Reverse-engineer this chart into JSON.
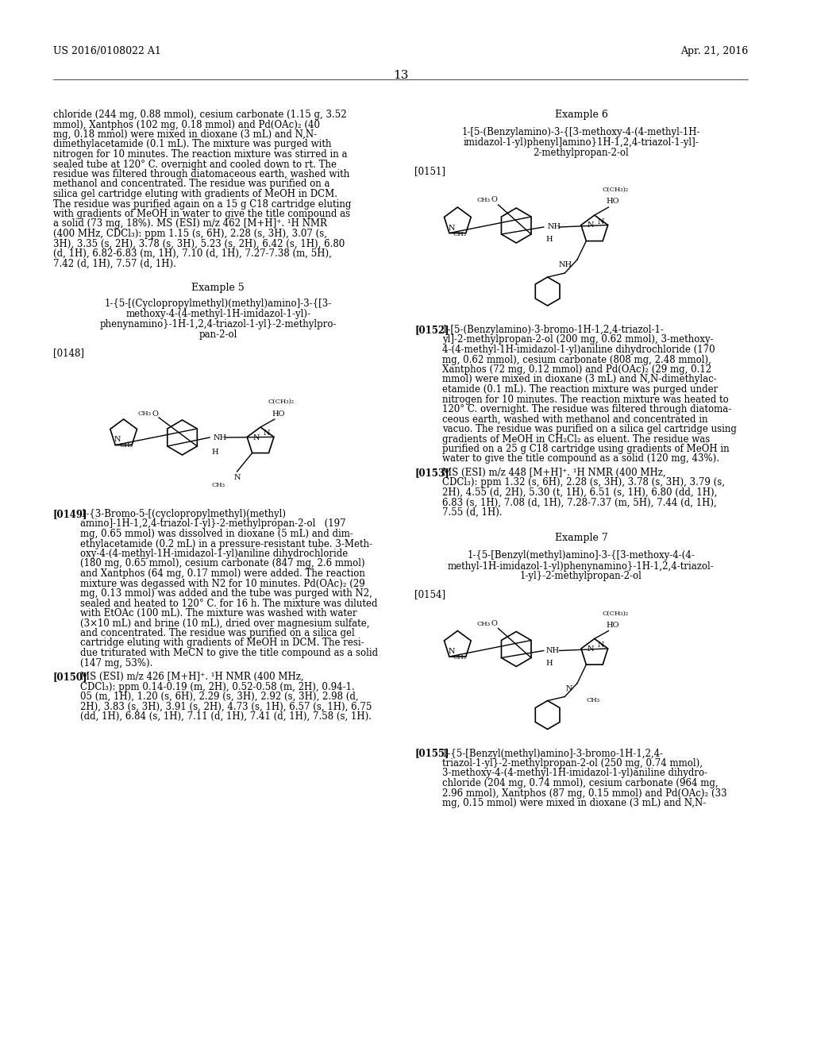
{
  "header_left": "US 2016/0108022 A1",
  "header_right": "Apr. 21, 2016",
  "page_number": "13",
  "background_color": "#ffffff",
  "text_color": "#000000",
  "font_size_body": 8.5,
  "font_size_header": 9,
  "font_size_page": 11,
  "left_column_text": [
    "chloride (244 mg, 0.88 mmol), cesium carbonate (1.15 g, 3.52",
    "mmol), Xantphos (102 mg, 0.18 mmol) and Pd(OAc)₂ (40",
    "mg, 0.18 mmol) were mixed in dioxane (3 mL) and N,N-",
    "dimethylacetamide (0.1 mL). The mixture was purged with",
    "nitrogen for 10 minutes. The reaction mixture was stirred in a",
    "sealed tube at 120° C. overnight and cooled down to rt. The",
    "residue was filtered through diatomaceous earth, washed with",
    "methanol and concentrated. The residue was purified on a",
    "silica gel cartridge eluting with gradients of MeOH in DCM.",
    "The residue was purified again on a 15 g C18 cartridge eluting",
    "with gradients of MeOH in water to give the title compound as",
    "a solid (73 mg, 18%). MS (ESI) m/z 462 [M+H]⁺. ¹H NMR",
    "(400 MHz, CDCl₃): ppm 1.15 (s, 6H), 2.28 (s, 3H), 3.07 (s,",
    "3H), 3.35 (s, 2H), 3.78 (s, 3H), 5.23 (s, 2H), 6.42 (s, 1H), 6.80",
    "(d, 1H), 6.82-6.83 (m, 1H), 7.10 (d, 1H), 7.27-7.38 (m, 5H),",
    "7.42 (d, 1H), 7.57 (d, 1H)."
  ],
  "example5_title": "Example 5",
  "example5_compound": "1-{5-[(Cyclopropylmethyl)(methyl)amino]-3-{[3-\nmethoxy-4-(4-methyl-1H-imidazol-1-yl)-\nphenynamino}-1H-1,2,4-triazol-1-yl}-2-methylpro-\npan-2-ol",
  "example5_ref": "[0148]",
  "example6_title": "Example 6",
  "example6_compound": "1-[5-(Benzylamino)-3-{[3-methoxy-4-(4-methyl-1H-\nimidazol-1-yl)phenyl]amino}1H-1,2,4-triazol-1-yl]-\n2-methylpropan-2-ol",
  "example6_ref": "[0151]",
  "example7_title": "Example 7",
  "example7_compound": "1-{5-[Benzyl(methyl)amino]-3-{[3-methoxy-4-(4-\nmethyl-1H-imidazol-1-yl)phenynamino}-1H-1,2,4-triazol-\n1-yl}-2-methylpropan-2-ol",
  "example7_ref": "[0154]",
  "para0149_label": "[0149]",
  "para0149_text": "1-{3-Bromo-5-[(cyclopropylmethyl)(methyl)\namino]-1H-1,2,4-triazol-1-yl}-2-methylpropan-2-ol   (197\nmg, 0.65 mmol) was dissolved in dioxane (5 mL) and dim-\nethylacetamide (0.2 mL) in a pressure-resistant tube. 3-Meth-\noxy-4-(4-methyl-1H-imidazol-1-yl)aniline dihydrochloride\n(180 mg, 0.65 mmol), cesium carbonate (847 mg, 2.6 mmol)\nand Xantphos (64 mg, 0.17 mmol) were added. The reaction\nmixture was degassed with N2 for 10 minutes. Pd(OAc)₂ (29\nmg, 0.13 mmol) was added and the tube was purged with N2,\nsealed and heated to 120° C. for 16 h. The mixture was diluted\nwith EtOAc (100 mL). The mixture was washed with water\n(3×10 mL) and brine (10 mL), dried over magnesium sulfate,\nand concentrated. The residue was purified on a silica gel\ncartridge eluting with gradients of MeOH in DCM. The resi-\ndue triturated with MeCN to give the title compound as a solid\n(147 mg, 53%).",
  "para0150_label": "[0150]",
  "para0150_text": "MS (ESI) m/z 426 [M+H]⁺. ¹H NMR (400 MHz,\nCDCl₃): ppm 0.14-0.19 (m, 2H), 0.52-0.58 (m, 2H), 0.94-1.\n05 (m, 1H), 1.20 (s, 6H), 2.29 (s, 3H), 2.92 (s, 3H), 2.98 (d,\n2H), 3.83 (s, 3H), 3.91 (s, 2H), 4.73 (s, 1H), 6.57 (s, 1H), 6.75\n(dd, 1H), 6.84 (s, 1H), 7.11 (d, 1H), 7.41 (d, 1H), 7.58 (s, 1H).",
  "para0152_label": "[0152]",
  "para0152_text": "1-[5-(Benzylamino)-3-bromo-1H-1,2,4-triazol-1-\nyl]-2-methylpropan-2-ol (200 mg, 0.62 mmol), 3-methoxy-\n4-(4-methyl-1H-imidazol-1-yl)aniline dihydrochloride (170\nmg, 0.62 mmol), cesium carbonate (808 mg, 2.48 mmol),\nXantphos (72 mg, 0.12 mmol) and Pd(OAc)₂ (29 mg, 0.12\nmmol) were mixed in dioxane (3 mL) and N,N-dimethylac-\netamide (0.1 mL). The reaction mixture was purged under\nnitrogen for 10 minutes. The reaction mixture was heated to\n120° C. overnight. The residue was filtered through diatoma-\nceous earth, washed with methanol and concentrated in\nvacuo. The residue was purified on a silica gel cartridge using\ngradients of MeOH in CH₂Cl₂ as eluent. The residue was\npurified on a 25 g C18 cartridge using gradients of MeOH in\nwater to give the title compound as a solid (120 mg, 43%).",
  "para0153_label": "[0153]",
  "para0153_text": "MS (ESI) m/z 448 [M+H]⁺. ¹H NMR (400 MHz,\nCDCl₃): ppm 1.32 (s, 6H), 2.28 (s, 3H), 3.78 (s, 3H), 3.79 (s,\n2H), 4.55 (d, 2H), 5.30 (t, 1H), 6.51 (s, 1H), 6.80 (dd, 1H),\n6.83 (s, 1H), 7.08 (d, 1H), 7.28-7.37 (m, 5H), 7.44 (d, 1H),\n7.55 (d, 1H).",
  "para0155_label": "[0155]",
  "para0155_text": "1-{5-[Benzyl(methyl)amino]-3-bromo-1H-1,2,4-\ntriazol-1-yl}-2-methylpropan-2-ol (250 mg, 0.74 mmol),\n3-methoxy-4-(4-methyl-1H-imidazol-1-yl)aniline dihydro-\nchloride (204 mg, 0.74 mmol), cesium carbonate (964 mg,\n2.96 mmol), Xantphos (87 mg, 0.15 mmol) and Pd(OAc)₂ (33\nmg, 0.15 mmol) were mixed in dioxane (3 mL) and N,N-"
}
